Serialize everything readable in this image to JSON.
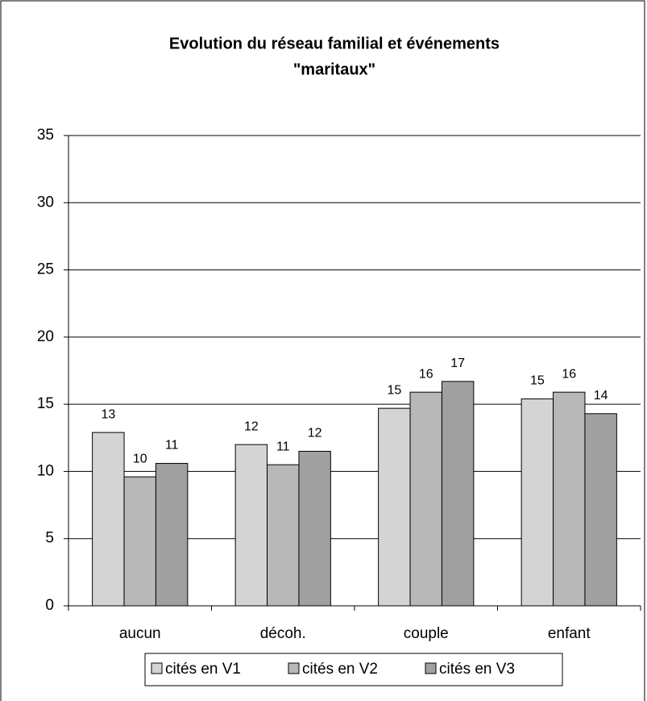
{
  "chart_data": {
    "type": "bar",
    "title": [
      "Evolution du réseau familial et événements",
      "\"maritaux\""
    ],
    "categories": [
      "aucun",
      "décoh.",
      "couple",
      "enfant"
    ],
    "series": [
      {
        "name": "cités en V1",
        "color": "#d4d4d4",
        "values": [
          12.9,
          12.0,
          14.7,
          15.4
        ],
        "value_labels": [
          "13",
          "12",
          "15",
          "15"
        ]
      },
      {
        "name": "cités en V2",
        "color": "#b8b8b8",
        "values": [
          9.6,
          10.5,
          15.9,
          15.9
        ],
        "value_labels": [
          "10",
          "11",
          "16",
          "16"
        ]
      },
      {
        "name": "cités en V3",
        "color": "#a0a0a0",
        "values": [
          10.6,
          11.5,
          16.7,
          14.3
        ],
        "value_labels": [
          "11",
          "12",
          "17",
          "14"
        ]
      }
    ],
    "ylim": [
      0,
      35
    ],
    "yticks": [
      0,
      5,
      10,
      15,
      20,
      25,
      30,
      35
    ],
    "grid": true,
    "legend": "bottom"
  }
}
